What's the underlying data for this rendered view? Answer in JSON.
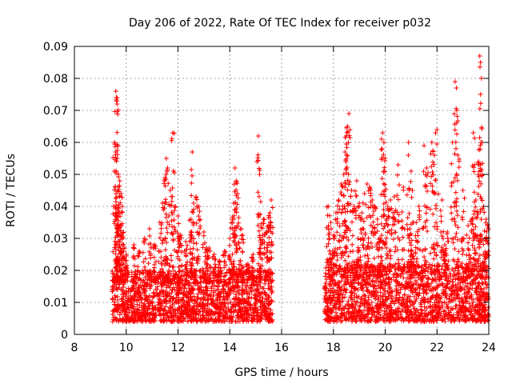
{
  "chart_data": {
    "type": "scatter",
    "title": "Day 206 of 2022, Rate Of TEC Index for receiver p032",
    "xlabel": "GPS time / hours",
    "ylabel": "ROTI / TECUs",
    "xlim": [
      8,
      24
    ],
    "ylim": [
      0,
      0.09
    ],
    "grid": true,
    "marker": "+",
    "x_ticks": [
      8,
      10,
      12,
      14,
      16,
      18,
      20,
      22,
      24
    ],
    "y_ticks": [
      0,
      0.01,
      0.02,
      0.03,
      0.04,
      0.05,
      0.06,
      0.07,
      0.08,
      0.09
    ],
    "x_tick_labels": [
      "8",
      "10",
      "12",
      "14",
      "16",
      "18",
      "20",
      "22",
      "24"
    ],
    "y_tick_labels": [
      "0",
      "0.01",
      "0.02",
      "0.03",
      "0.04",
      "0.05",
      "0.06",
      "0.07",
      "0.08",
      "0.09"
    ],
    "series": [
      {
        "name": "ROTI",
        "color": "#ff0000",
        "segments": [
          {
            "x_range": [
              9.45,
              15.65
            ],
            "base_y_range": [
              0.004,
              0.02
            ],
            "points": [
              [
                9.6,
                0.076
              ],
              [
                9.62,
                0.074
              ],
              [
                9.65,
                0.072
              ],
              [
                9.55,
                0.06
              ],
              [
                9.6,
                0.057
              ],
              [
                9.65,
                0.055
              ],
              [
                9.7,
                0.05
              ],
              [
                9.75,
                0.048
              ],
              [
                9.8,
                0.044
              ],
              [
                9.85,
                0.04
              ],
              [
                9.6,
                0.038
              ],
              [
                9.7,
                0.034
              ],
              [
                9.8,
                0.031
              ],
              [
                9.9,
                0.028
              ],
              [
                10.0,
                0.025
              ],
              [
                10.3,
                0.028
              ],
              [
                10.5,
                0.026
              ],
              [
                10.7,
                0.03
              ],
              [
                10.9,
                0.033
              ],
              [
                11.1,
                0.028
              ],
              [
                11.3,
                0.035
              ],
              [
                11.4,
                0.041
              ],
              [
                11.5,
                0.049
              ],
              [
                11.55,
                0.055
              ],
              [
                11.6,
                0.052
              ],
              [
                11.7,
                0.045
              ],
              [
                11.8,
                0.063
              ],
              [
                11.9,
                0.04
              ],
              [
                12.0,
                0.037
              ],
              [
                12.1,
                0.031
              ],
              [
                12.3,
                0.029
              ],
              [
                12.5,
                0.036
              ],
              [
                12.55,
                0.057
              ],
              [
                12.6,
                0.041
              ],
              [
                12.7,
                0.043
              ],
              [
                12.8,
                0.04
              ],
              [
                13.0,
                0.032
              ],
              [
                13.2,
                0.027
              ],
              [
                13.4,
                0.025
              ],
              [
                13.6,
                0.023
              ],
              [
                13.8,
                0.026
              ],
              [
                14.0,
                0.03
              ],
              [
                14.1,
                0.036
              ],
              [
                14.15,
                0.041
              ],
              [
                14.2,
                0.052
              ],
              [
                14.25,
                0.048
              ],
              [
                14.4,
                0.033
              ],
              [
                14.5,
                0.031
              ],
              [
                14.7,
                0.022
              ],
              [
                14.9,
                0.025
              ],
              [
                15.1,
                0.062
              ],
              [
                15.15,
                0.05
              ],
              [
                15.3,
                0.036
              ],
              [
                15.4,
                0.032
              ],
              [
                15.5,
                0.034
              ],
              [
                15.6,
                0.042
              ],
              [
                15.55,
                0.038
              ],
              [
                15.2,
                0.028
              ],
              [
                14.3,
                0.044
              ],
              [
                13.1,
                0.027
              ]
            ]
          },
          {
            "x_range": [
              17.65,
              24.0
            ],
            "base_y_range": [
              0.004,
              0.022
            ],
            "points": [
              [
                17.8,
                0.04
              ],
              [
                17.9,
                0.035
              ],
              [
                18.0,
                0.031
              ],
              [
                18.1,
                0.038
              ],
              [
                18.2,
                0.042
              ],
              [
                18.3,
                0.047
              ],
              [
                18.4,
                0.05
              ],
              [
                18.45,
                0.057
              ],
              [
                18.5,
                0.062
              ],
              [
                18.55,
                0.065
              ],
              [
                18.6,
                0.069
              ],
              [
                18.7,
                0.045
              ],
              [
                18.8,
                0.04
              ],
              [
                18.9,
                0.048
              ],
              [
                19.0,
                0.041
              ],
              [
                19.1,
                0.038
              ],
              [
                19.2,
                0.044
              ],
              [
                19.3,
                0.047
              ],
              [
                19.4,
                0.046
              ],
              [
                19.5,
                0.042
              ],
              [
                19.6,
                0.04
              ],
              [
                19.7,
                0.036
              ],
              [
                19.8,
                0.03
              ],
              [
                19.9,
                0.063
              ],
              [
                19.95,
                0.06
              ],
              [
                20.0,
                0.055
              ],
              [
                20.1,
                0.04
              ],
              [
                20.2,
                0.042
              ],
              [
                20.35,
                0.043
              ],
              [
                20.5,
                0.053
              ],
              [
                20.7,
                0.046
              ],
              [
                20.9,
                0.06
              ],
              [
                21.0,
                0.051
              ],
              [
                21.05,
                0.045
              ],
              [
                21.2,
                0.035
              ],
              [
                21.3,
                0.04
              ],
              [
                21.5,
                0.059
              ],
              [
                21.6,
                0.052
              ],
              [
                21.8,
                0.06
              ],
              [
                21.9,
                0.056
              ],
              [
                22.0,
                0.064
              ],
              [
                22.2,
                0.042
              ],
              [
                22.4,
                0.032
              ],
              [
                22.6,
                0.06
              ],
              [
                22.7,
                0.079
              ],
              [
                22.75,
                0.077
              ],
              [
                22.8,
                0.056
              ],
              [
                23.0,
                0.045
              ],
              [
                23.2,
                0.034
              ],
              [
                23.35,
                0.036
              ],
              [
                23.4,
                0.063
              ],
              [
                23.45,
                0.053
              ],
              [
                23.5,
                0.042
              ],
              [
                23.6,
                0.054
              ],
              [
                23.65,
                0.087
              ],
              [
                23.68,
                0.085
              ],
              [
                23.7,
                0.06
              ],
              [
                23.8,
                0.04
              ],
              [
                23.9,
                0.036
              ],
              [
                23.95,
                0.034
              ],
              [
                21.0,
                0.026
              ],
              [
                22.3,
                0.028
              ]
            ]
          }
        ]
      }
    ]
  }
}
